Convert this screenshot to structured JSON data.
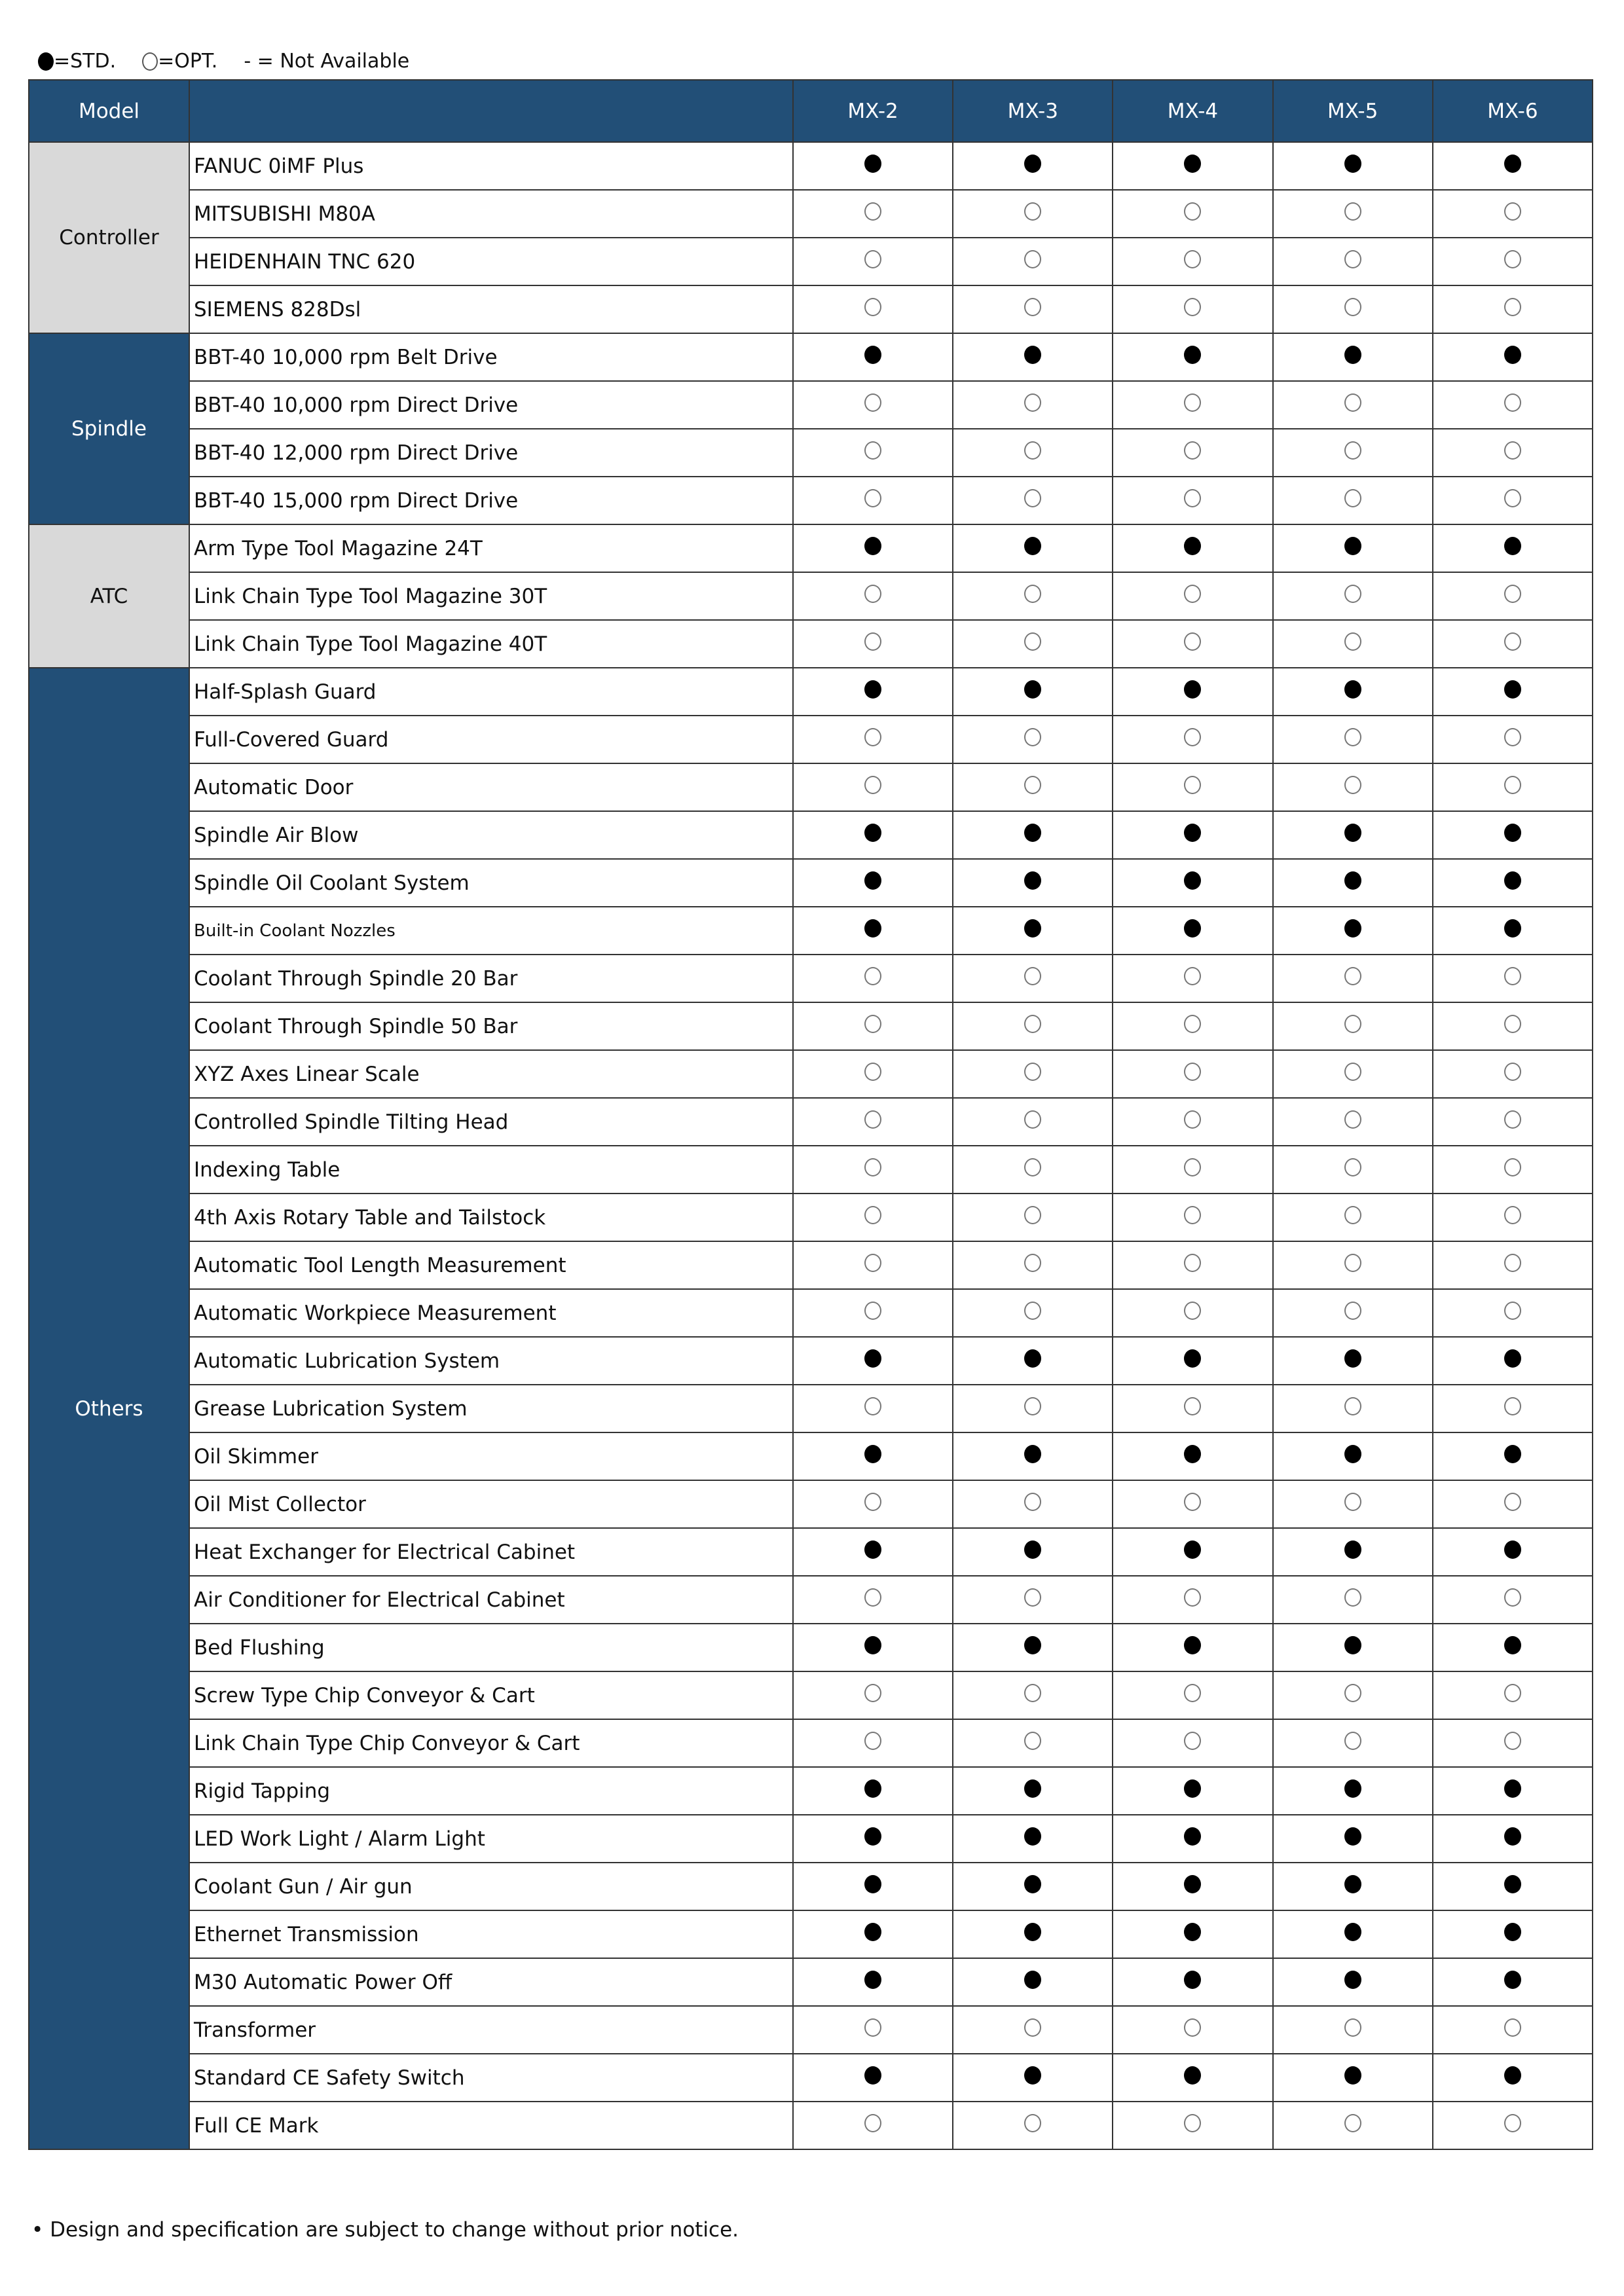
{
  "legend": {
    "std": "=STD.",
    "opt": "=OPT.",
    "na": "- = Not Available"
  },
  "header": {
    "model_label": "Model",
    "models": [
      "MX-2",
      "MX-3",
      "MX-4",
      "MX-5",
      "MX-6"
    ]
  },
  "colors": {
    "header": "#224f77",
    "gray": "#d9d9d9"
  },
  "groups": [
    {
      "name": "Controller",
      "style": "gray",
      "rows": [
        {
          "feature": "FANUC 0iMF Plus",
          "mark": "std"
        },
        {
          "feature": "MITSUBISHI M80A",
          "mark": "opt"
        },
        {
          "feature": "HEIDENHAIN TNC 620",
          "mark": "opt"
        },
        {
          "feature": "SIEMENS 828Dsl",
          "mark": "opt"
        }
      ]
    },
    {
      "name": "Spindle",
      "style": "blue",
      "rows": [
        {
          "feature": "BBT-40 10,000 rpm Belt Drive",
          "mark": "std"
        },
        {
          "feature": "BBT-40 10,000 rpm Direct Drive",
          "mark": "opt"
        },
        {
          "feature": "BBT-40 12,000 rpm Direct Drive",
          "mark": "opt"
        },
        {
          "feature": "BBT-40 15,000 rpm Direct Drive",
          "mark": "opt"
        }
      ]
    },
    {
      "name": "ATC",
      "style": "gray",
      "rows": [
        {
          "feature": "Arm Type Tool Magazine 24T",
          "mark": "std"
        },
        {
          "feature": "Link Chain Type Tool Magazine 30T",
          "mark": "opt"
        },
        {
          "feature": "Link Chain Type Tool Magazine 40T",
          "mark": "opt"
        }
      ]
    },
    {
      "name": "Others",
      "style": "blue",
      "rows": [
        {
          "feature": "Half-Splash Guard",
          "mark": "std"
        },
        {
          "feature": "Full-Covered Guard",
          "mark": "opt"
        },
        {
          "feature": "Automatic Door",
          "mark": "opt"
        },
        {
          "feature": "Spindle Air Blow",
          "mark": "std"
        },
        {
          "feature": "Spindle Oil Coolant System",
          "mark": "std"
        },
        {
          "feature": "Built-in Coolant Nozzles",
          "mark": "std",
          "small": true
        },
        {
          "feature": "Coolant Through Spindle 20 Bar",
          "mark": "opt"
        },
        {
          "feature": "Coolant Through Spindle 50 Bar",
          "mark": "opt"
        },
        {
          "feature": "XYZ Axes Linear Scale",
          "mark": "opt"
        },
        {
          "feature": "Controlled Spindle Tilting Head",
          "mark": "opt"
        },
        {
          "feature": "Indexing Table",
          "mark": "opt"
        },
        {
          "feature": "4th Axis Rotary Table and Tailstock",
          "mark": "opt"
        },
        {
          "feature": "Automatic Tool Length Measurement",
          "mark": "opt"
        },
        {
          "feature": "Automatic Workpiece Measurement",
          "mark": "opt"
        },
        {
          "feature": "Automatic Lubrication System",
          "mark": "std"
        },
        {
          "feature": "Grease Lubrication System",
          "mark": "opt"
        },
        {
          "feature": "Oil Skimmer",
          "mark": "std"
        },
        {
          "feature": "Oil Mist Collector",
          "mark": "opt"
        },
        {
          "feature": "Heat Exchanger for Electrical Cabinet",
          "mark": "std"
        },
        {
          "feature": "Air Conditioner for Electrical Cabinet",
          "mark": "opt"
        },
        {
          "feature": "Bed Flushing",
          "mark": "std"
        },
        {
          "feature": "Screw Type Chip Conveyor & Cart",
          "mark": "opt"
        },
        {
          "feature": "Link Chain Type Chip Conveyor & Cart",
          "mark": "opt"
        },
        {
          "feature": "Rigid Tapping",
          "mark": "std"
        },
        {
          "feature": "LED Work Light / Alarm Light",
          "mark": "std"
        },
        {
          "feature": "Coolant Gun / Air gun",
          "mark": "std"
        },
        {
          "feature": "Ethernet Transmission",
          "mark": "std"
        },
        {
          "feature": "M30 Automatic Power Off",
          "mark": "std"
        },
        {
          "feature": "Transformer",
          "mark": "opt"
        },
        {
          "feature": "Standard CE Safety Switch",
          "mark": "std"
        },
        {
          "feature": "Full CE Mark",
          "mark": "opt"
        }
      ]
    }
  ],
  "footer": "• Design and specification are subject to change without prior notice."
}
